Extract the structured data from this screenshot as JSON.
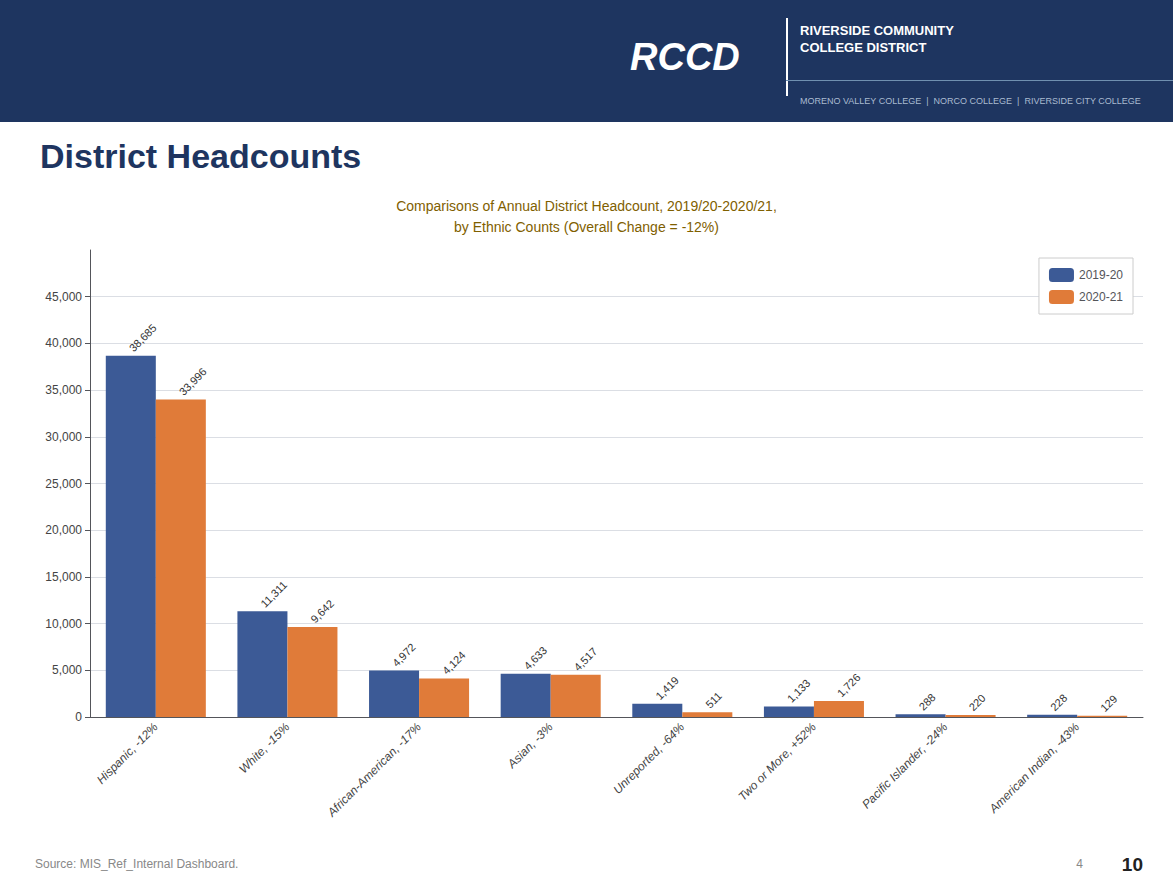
{
  "chart_data": {
    "type": "bar",
    "title": "District Headcounts",
    "subtitle": "Comparisons of Annual District Headcount, 2019/20-2020/21,\nby Ethnic Counts (Overall Change = -12%)",
    "annotations": [
      "RCCD",
      "RIVERSIDE COMMUNITY\nCOLLEGE DISTRICT",
      "MORENO VALLEY COLLEGE  |  NORCO COLLEGE  |  RIVERSIDE CITY COLLEGE",
      "Source: MIS_Ref_Internal Dashboard.",
      "4",
      "10"
    ],
    "categories": [
      "Hispanic, -12%",
      "White, -15%",
      "African-American, -17%",
      "Asian, -3%",
      "Unreported, -64%",
      "Two or More, +52%",
      "Pacific Islander, -24%",
      "American Indian, -43%"
    ],
    "series": [
      {
        "name": "2019-20",
        "color": "#3c5a96",
        "values": [
          38685,
          11311,
          4972,
          4633,
          1419,
          1133,
          288,
          228
        ],
        "value_labels": [
          "38,685",
          "11,311",
          "4,972",
          "4,633",
          "1,419",
          "1,133",
          "288",
          "228"
        ]
      },
      {
        "name": "2020-21",
        "color": "#e07b39",
        "values": [
          33996,
          9642,
          4124,
          4517,
          511,
          1726,
          220,
          129
        ],
        "value_labels": [
          "33,996",
          "9,642",
          "4,124",
          "4,517",
          "511",
          "1,726",
          "220",
          "129"
        ]
      }
    ],
    "ylim": [
      0,
      50000
    ],
    "yticks": [
      0,
      {
        "value": 5000,
        "label": "5,000"
      },
      {
        "value": 10000,
        "label": "10,000"
      },
      {
        "value": 15000,
        "label": "15,000"
      },
      {
        "value": 20000,
        "label": "20,000"
      },
      {
        "value": 25000,
        "label": "25,000"
      },
      {
        "value": 30000,
        "label": "30,000"
      },
      {
        "value": 35000,
        "label": "35,000"
      },
      {
        "value": 40000,
        "label": "40,000"
      },
      {
        "value": 45000,
        "label": "45,000"
      }
    ],
    "grid": true,
    "legend": "upper right",
    "data_labels": true
  }
}
